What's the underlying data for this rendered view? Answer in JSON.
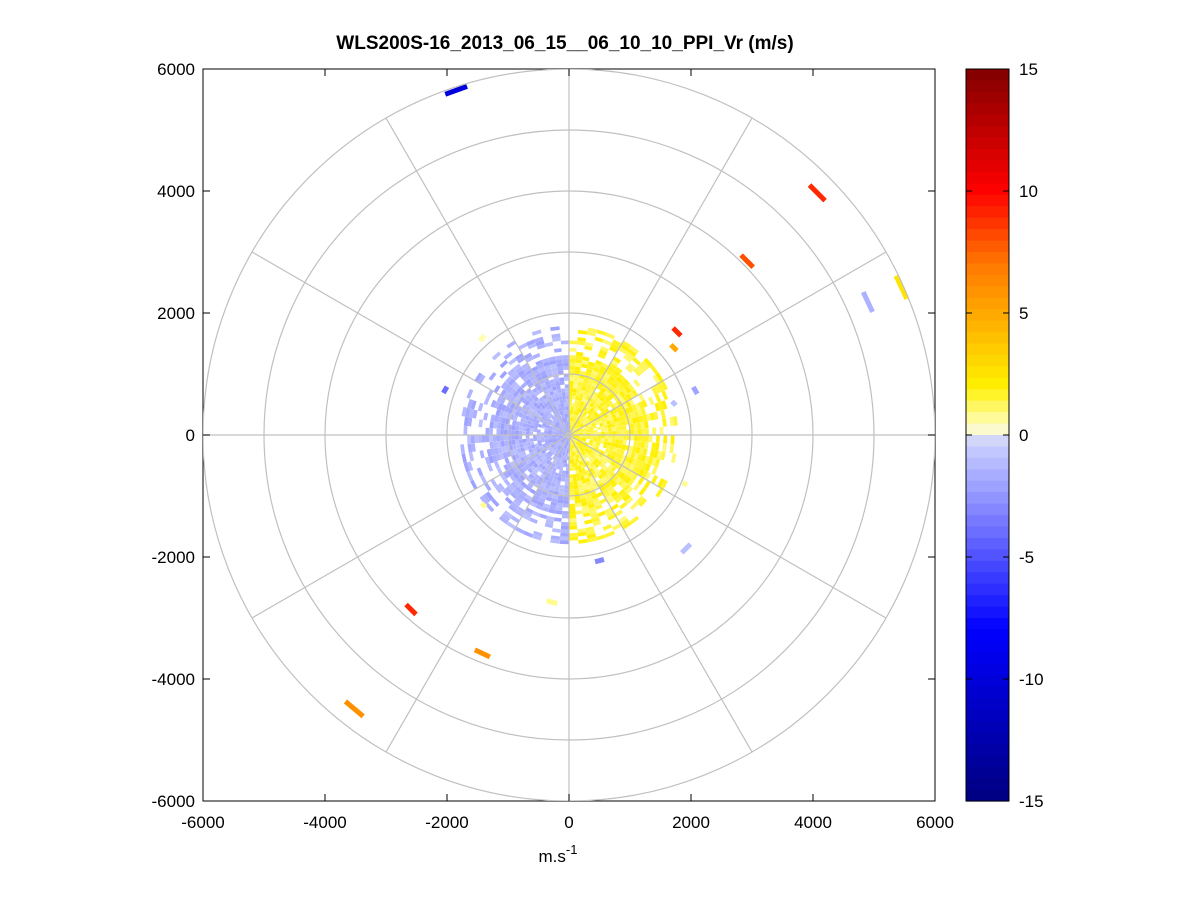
{
  "chart_data": {
    "type": "heatmap",
    "subtype": "polar-ppi",
    "title": "WLS200S-16_2013_06_15__06_10_10_PPI_Vr (m/s)",
    "xlabel": "m.s",
    "xlabel_superscript": "-1",
    "ylabel": "",
    "xlim": [
      -6000,
      6000
    ],
    "ylim": [
      -6000,
      6000
    ],
    "x_ticks": [
      -6000,
      -4000,
      -2000,
      0,
      2000,
      4000,
      6000
    ],
    "y_ticks": [
      -6000,
      -4000,
      -2000,
      0,
      2000,
      4000,
      6000
    ],
    "x_tick_labels": [
      "-6000",
      "-4000",
      "-2000",
      "0",
      "2000",
      "4000",
      "6000"
    ],
    "y_tick_labels": [
      "-6000",
      "-4000",
      "-2000",
      "0",
      "2000",
      "4000",
      "6000"
    ],
    "polar_grid": {
      "ring_radii": [
        1000,
        2000,
        3000,
        4000,
        5000,
        6000
      ],
      "spoke_angles_deg": [
        0,
        30,
        60,
        90,
        120,
        150,
        180,
        210,
        240,
        270,
        300,
        330
      ],
      "grid_color": "#c0c0c0"
    },
    "colorbar": {
      "range": [
        -15,
        15
      ],
      "ticks": [
        -15,
        -10,
        -5,
        0,
        5,
        10,
        15
      ],
      "tick_labels": [
        "-15",
        "-10",
        "-5",
        "0",
        "5",
        "10",
        "15"
      ],
      "colormap": "blue-white-yellow-red",
      "position": "right"
    },
    "data_description_bins": {
      "inner_receding_sector_velocity": 1.5,
      "inner_approaching_sector_velocity": -1.5,
      "inner_radius_max": 1800
    },
    "segments": [
      {
        "x": -1850,
        "y": 5650,
        "angle_deg": 20,
        "length": 380,
        "value": -10
      },
      {
        "x": 4070,
        "y": 3970,
        "angle_deg": -45,
        "length": 360,
        "value": 9
      },
      {
        "x": 2920,
        "y": 2850,
        "angle_deg": -45,
        "length": 280,
        "value": 8
      },
      {
        "x": 5450,
        "y": 2420,
        "angle_deg": -65,
        "length": 420,
        "value": 2.5
      },
      {
        "x": 4900,
        "y": 2180,
        "angle_deg": -65,
        "length": 360,
        "value": -1.5
      },
      {
        "x": 1770,
        "y": 1690,
        "angle_deg": -45,
        "length": 180,
        "value": 9
      },
      {
        "x": 1720,
        "y": 1430,
        "angle_deg": -45,
        "length": 140,
        "value": 5
      },
      {
        "x": 2070,
        "y": 730,
        "angle_deg": -60,
        "length": 130,
        "value": -2
      },
      {
        "x": -2030,
        "y": 740,
        "angle_deg": 60,
        "length": 120,
        "value": -4
      },
      {
        "x": -1420,
        "y": 1590,
        "angle_deg": 45,
        "length": 120,
        "value": 0.5
      },
      {
        "x": 1920,
        "y": -1860,
        "angle_deg": 45,
        "length": 200,
        "value": -1
      },
      {
        "x": 500,
        "y": -2060,
        "angle_deg": 15,
        "length": 150,
        "value": -3
      },
      {
        "x": -280,
        "y": -2740,
        "angle_deg": -15,
        "length": 180,
        "value": 0.8
      },
      {
        "x": -2590,
        "y": -2860,
        "angle_deg": -45,
        "length": 230,
        "value": 9
      },
      {
        "x": -1420,
        "y": -3580,
        "angle_deg": -25,
        "length": 270,
        "value": 6
      },
      {
        "x": -3520,
        "y": -4490,
        "angle_deg": -40,
        "length": 380,
        "value": 6
      }
    ],
    "extra_segments": [
      {
        "x": 1720,
        "y": 520,
        "angle_deg": -45,
        "length": 90,
        "value": -1
      },
      {
        "x": 1900,
        "y": -800,
        "angle_deg": 60,
        "length": 80,
        "value": 0.8
      },
      {
        "x": -1400,
        "y": -1150,
        "angle_deg": -45,
        "length": 90,
        "value": 0.8
      }
    ]
  }
}
